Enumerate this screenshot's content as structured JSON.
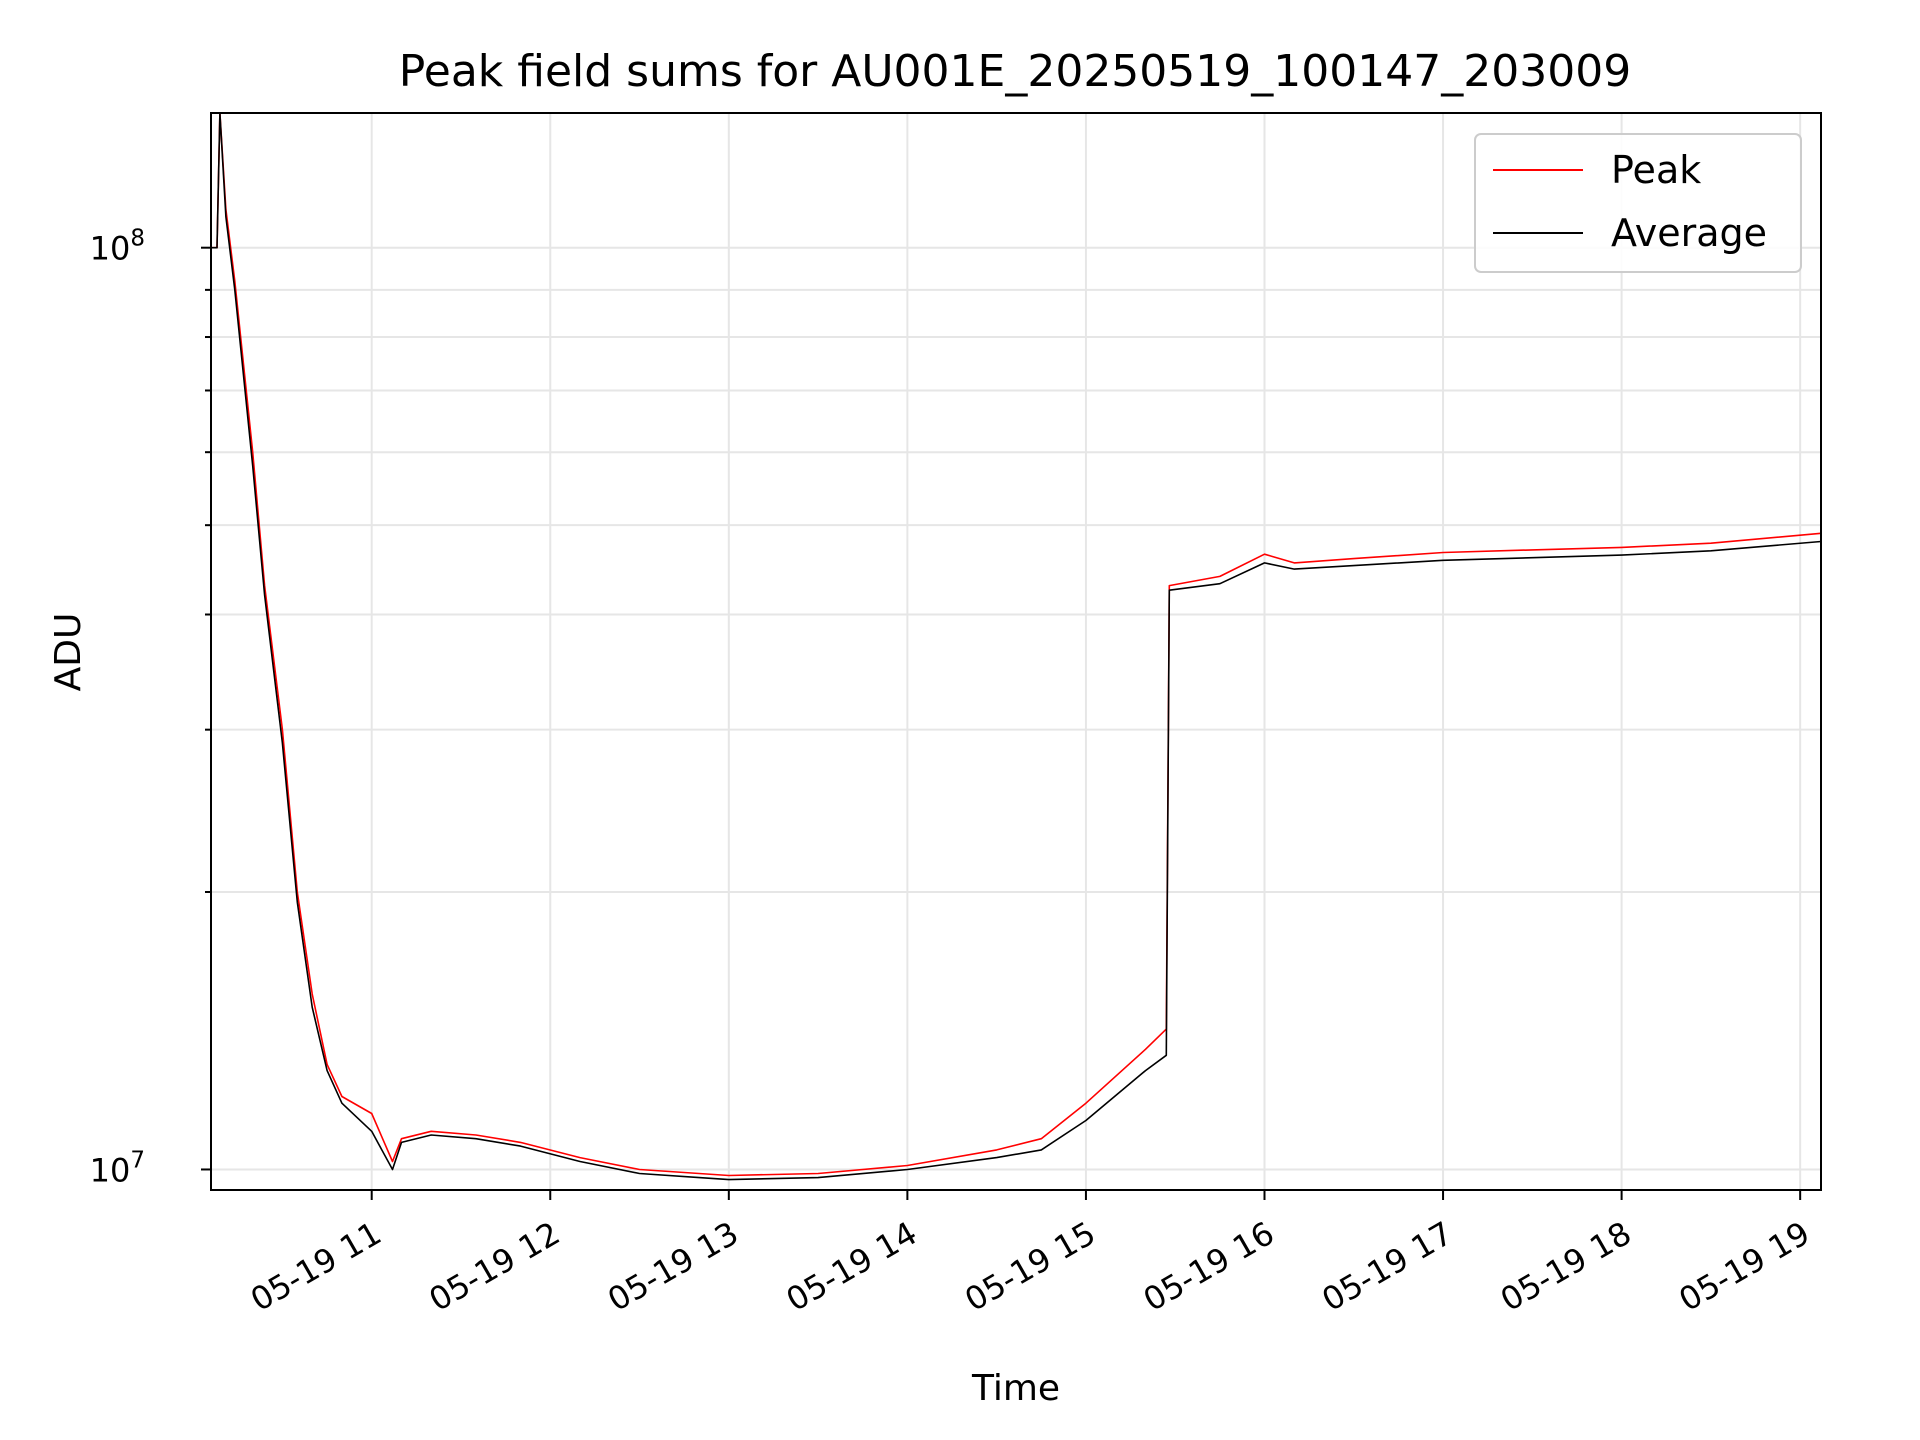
{
  "chart_data": {
    "type": "line",
    "title": "Peak field sums for AU001E_20250519_100147_203009",
    "xlabel": "Time",
    "ylabel": "ADU",
    "yscale": "log",
    "grid": true,
    "legend_position": "top-right",
    "xlim": [
      "2025-05-19 10:06",
      "2025-05-19 19:07"
    ],
    "ylim": [
      9500000,
      140000000
    ],
    "x_ticks": [
      {
        "value": "2025-05-19 11:00",
        "label": "05-19 11"
      },
      {
        "value": "2025-05-19 12:00",
        "label": "05-19 12"
      },
      {
        "value": "2025-05-19 13:00",
        "label": "05-19 13"
      },
      {
        "value": "2025-05-19 14:00",
        "label": "05-19 14"
      },
      {
        "value": "2025-05-19 15:00",
        "label": "05-19 15"
      },
      {
        "value": "2025-05-19 16:00",
        "label": "05-19 16"
      },
      {
        "value": "2025-05-19 17:00",
        "label": "05-19 17"
      },
      {
        "value": "2025-05-19 18:00",
        "label": "05-19 18"
      },
      {
        "value": "2025-05-19 19:00",
        "label": "05-19 19"
      }
    ],
    "y_ticks": [
      {
        "value": 10000000,
        "base": "10",
        "exp": "7"
      },
      {
        "value": 100000000,
        "base": "10",
        "exp": "8"
      }
    ],
    "series": [
      {
        "name": "Peak",
        "color": "#ff0000",
        "points": [
          [
            "2025-05-19 10:06",
            100000000
          ],
          [
            "2025-05-19 10:08",
            100000000
          ],
          [
            "2025-05-19 10:09",
            140000000
          ],
          [
            "2025-05-19 10:11",
            110000000
          ],
          [
            "2025-05-19 10:14",
            92000000
          ],
          [
            "2025-05-19 10:20",
            60000000
          ],
          [
            "2025-05-19 10:24",
            43000000
          ],
          [
            "2025-05-19 10:30",
            30000000
          ],
          [
            "2025-05-19 10:35",
            20000000
          ],
          [
            "2025-05-19 10:40",
            15500000
          ],
          [
            "2025-05-19 10:45",
            13000000
          ],
          [
            "2025-05-19 10:50",
            12000000
          ],
          [
            "2025-05-19 11:00",
            11500000
          ],
          [
            "2025-05-19 11:07",
            10200000
          ],
          [
            "2025-05-19 11:10",
            10800000
          ],
          [
            "2025-05-19 11:20",
            11000000
          ],
          [
            "2025-05-19 11:35",
            10900000
          ],
          [
            "2025-05-19 11:50",
            10700000
          ],
          [
            "2025-05-19 12:10",
            10300000
          ],
          [
            "2025-05-19 12:30",
            10000000
          ],
          [
            "2025-05-19 12:50",
            9900000
          ],
          [
            "2025-05-19 13:00",
            9850000
          ],
          [
            "2025-05-19 13:30",
            9900000
          ],
          [
            "2025-05-19 14:00",
            10100000
          ],
          [
            "2025-05-19 14:30",
            10500000
          ],
          [
            "2025-05-19 14:45",
            10800000
          ],
          [
            "2025-05-19 15:00",
            11800000
          ],
          [
            "2025-05-19 15:20",
            13500000
          ],
          [
            "2025-05-19 15:27",
            14200000
          ],
          [
            "2025-05-19 15:28",
            43000000
          ],
          [
            "2025-05-19 15:45",
            44000000
          ],
          [
            "2025-05-19 16:00",
            46500000
          ],
          [
            "2025-05-19 16:10",
            45500000
          ],
          [
            "2025-05-19 16:30",
            46000000
          ],
          [
            "2025-05-19 17:00",
            46700000
          ],
          [
            "2025-05-19 17:30",
            47000000
          ],
          [
            "2025-05-19 18:00",
            47300000
          ],
          [
            "2025-05-19 18:30",
            47800000
          ],
          [
            "2025-05-19 19:07",
            49000000
          ]
        ]
      },
      {
        "name": "Average",
        "color": "#000000",
        "points": [
          [
            "2025-05-19 10:06",
            100000000
          ],
          [
            "2025-05-19 10:08",
            100000000
          ],
          [
            "2025-05-19 10:09",
            140000000
          ],
          [
            "2025-05-19 10:11",
            108000000
          ],
          [
            "2025-05-19 10:14",
            90000000
          ],
          [
            "2025-05-19 10:20",
            58000000
          ],
          [
            "2025-05-19 10:24",
            42000000
          ],
          [
            "2025-05-19 10:30",
            29000000
          ],
          [
            "2025-05-19 10:35",
            19500000
          ],
          [
            "2025-05-19 10:40",
            15000000
          ],
          [
            "2025-05-19 10:45",
            12800000
          ],
          [
            "2025-05-19 10:50",
            11800000
          ],
          [
            "2025-05-19 11:00",
            11000000
          ],
          [
            "2025-05-19 11:07",
            10000000
          ],
          [
            "2025-05-19 11:10",
            10700000
          ],
          [
            "2025-05-19 11:20",
            10900000
          ],
          [
            "2025-05-19 11:35",
            10800000
          ],
          [
            "2025-05-19 11:50",
            10600000
          ],
          [
            "2025-05-19 12:10",
            10200000
          ],
          [
            "2025-05-19 12:30",
            9900000
          ],
          [
            "2025-05-19 12:50",
            9800000
          ],
          [
            "2025-05-19 13:00",
            9750000
          ],
          [
            "2025-05-19 13:30",
            9800000
          ],
          [
            "2025-05-19 14:00",
            10000000
          ],
          [
            "2025-05-19 14:30",
            10300000
          ],
          [
            "2025-05-19 14:45",
            10500000
          ],
          [
            "2025-05-19 15:00",
            11300000
          ],
          [
            "2025-05-19 15:20",
            12800000
          ],
          [
            "2025-05-19 15:27",
            13300000
          ],
          [
            "2025-05-19 15:28",
            42500000
          ],
          [
            "2025-05-19 15:45",
            43200000
          ],
          [
            "2025-05-19 16:00",
            45500000
          ],
          [
            "2025-05-19 16:10",
            44800000
          ],
          [
            "2025-05-19 16:30",
            45200000
          ],
          [
            "2025-05-19 17:00",
            45800000
          ],
          [
            "2025-05-19 17:30",
            46100000
          ],
          [
            "2025-05-19 18:00",
            46400000
          ],
          [
            "2025-05-19 18:30",
            46900000
          ],
          [
            "2025-05-19 19:07",
            48000000
          ]
        ]
      }
    ]
  }
}
